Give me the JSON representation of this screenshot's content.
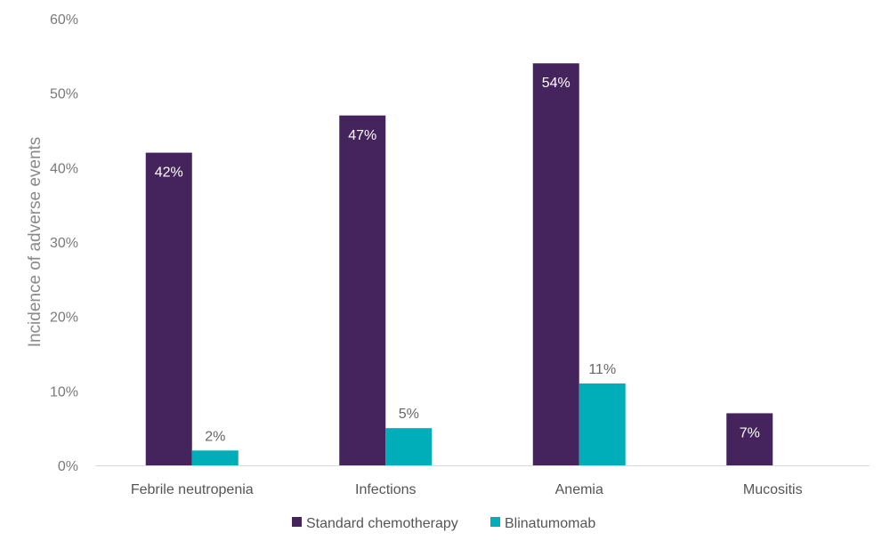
{
  "chart_data": {
    "type": "bar",
    "title": "",
    "xlabel": "",
    "ylabel": "Incidence of adverse events",
    "ylim": [
      0,
      60
    ],
    "y_ticks": [
      "0%",
      "10%",
      "20%",
      "30%",
      "40%",
      "50%",
      "60%"
    ],
    "categories": [
      "Febrile neutropenia",
      "Infections",
      "Anemia",
      "Mucositis"
    ],
    "series": [
      {
        "name": "Standard chemotherapy",
        "color": "#45235c",
        "values": [
          42,
          47,
          54,
          7
        ],
        "labels": [
          "42%",
          "47%",
          "54%",
          "7%"
        ]
      },
      {
        "name": "Blinatumomab",
        "color": "#00aeb9",
        "values": [
          2,
          5,
          11,
          null
        ],
        "labels": [
          "2%",
          "5%",
          "11%",
          ""
        ]
      }
    ],
    "grid": false,
    "legend_position": "bottom"
  }
}
